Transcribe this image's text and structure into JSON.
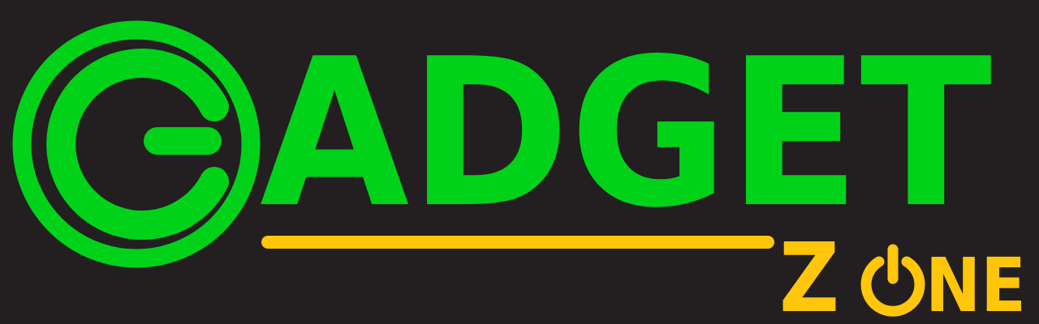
{
  "logo": {
    "wordmark": "GADGET",
    "wordmark_rest": "ADGET",
    "sub_wordmark": "ZONE",
    "sub_wordmark_letters": [
      "Z",
      "O",
      "N",
      "E"
    ],
    "emblem_letter": "G"
  },
  "colors": {
    "background": "#231f20",
    "primary_green": "#00d21a",
    "accent_yellow": "#ffc60b"
  },
  "icons": {
    "emblem": "g-circle-emblem-icon",
    "power": "power-icon"
  }
}
